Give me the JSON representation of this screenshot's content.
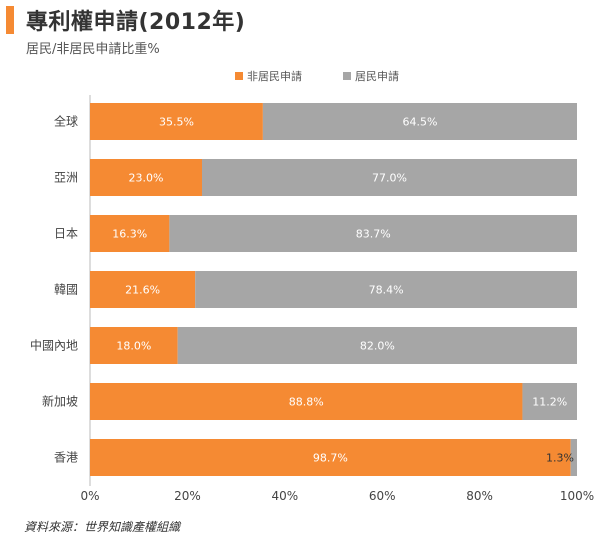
{
  "header": {
    "title": "專利權申請(2012年)",
    "subtitle": "居民/非居民申請比重%"
  },
  "footer": {
    "source": "資料來源：世界知識產權組織"
  },
  "colors": {
    "accent": "#F58A33",
    "non_resident": "#F58A33",
    "resident": "#A6A6A6"
  },
  "chart_data": {
    "type": "bar",
    "orientation": "horizontal",
    "stacked": true,
    "categories": [
      "全球",
      "亞洲",
      "日本",
      "韓國",
      "中國內地",
      "新加坡",
      "香港"
    ],
    "series": [
      {
        "name": "非居民申請",
        "values": [
          35.5,
          23.0,
          16.3,
          21.6,
          18.0,
          88.8,
          98.7
        ],
        "labels": [
          "35.5%",
          "23.0%",
          "16.3%",
          "21.6%",
          "18.0%",
          "88.8%",
          "98.7%"
        ]
      },
      {
        "name": "居民申請",
        "values": [
          64.5,
          77.0,
          83.7,
          78.4,
          82.0,
          11.2,
          1.3
        ],
        "labels": [
          "64.5%",
          "77.0%",
          "83.7%",
          "78.4%",
          "82.0%",
          "11.2%",
          "1.3%"
        ]
      }
    ],
    "xlim": [
      0,
      100
    ],
    "x_ticks": [
      "0%",
      "20%",
      "40%",
      "60%",
      "80%",
      "100%"
    ],
    "legend_position": "top-center",
    "grid": false
  }
}
